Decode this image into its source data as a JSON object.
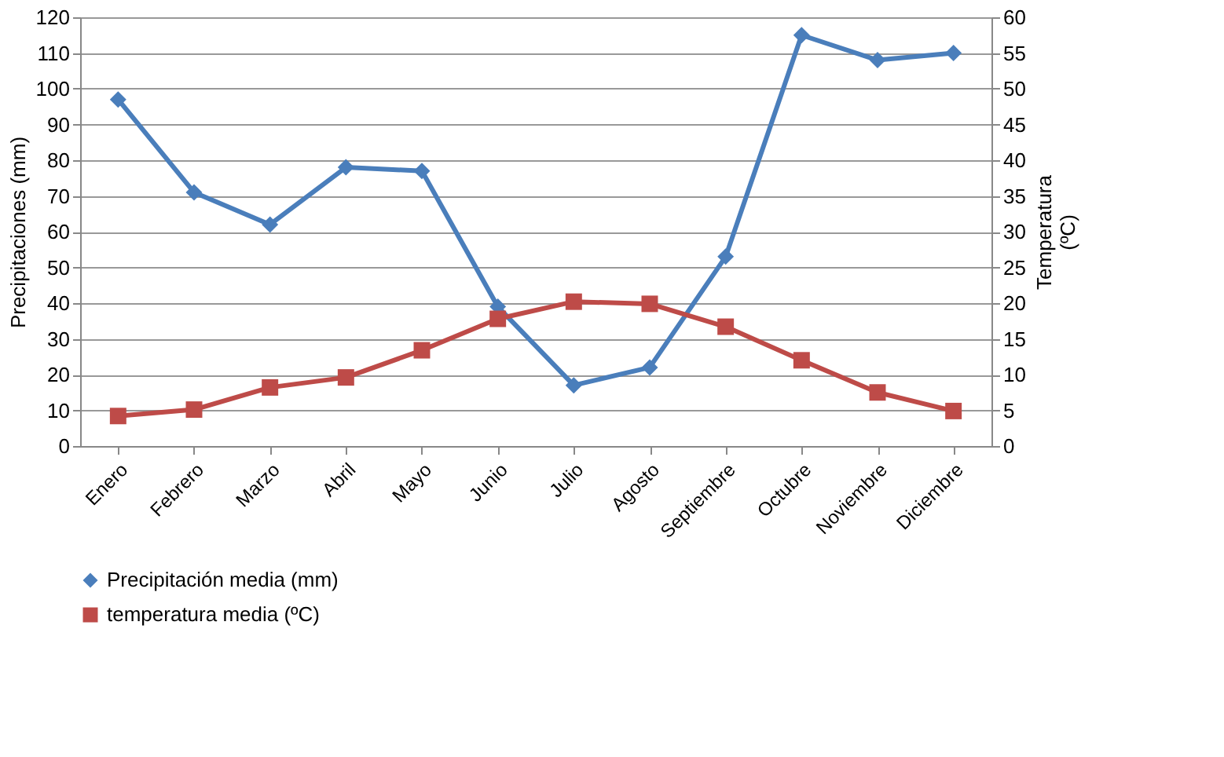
{
  "chart_data": {
    "type": "line",
    "categories": [
      "Enero",
      "Febrero",
      "Marzo",
      "Abril",
      "Mayo",
      "Junio",
      "Julio",
      "Agosto",
      "Septiembre",
      "Octubre",
      "Noviembre",
      "Diciembre"
    ],
    "series": [
      {
        "name": "Precipitación  media (mm)",
        "color": "#4a7ebb",
        "marker": "diamond",
        "values": [
          97,
          71,
          62,
          78,
          77,
          39,
          17,
          22,
          53,
          115,
          108,
          110
        ]
      },
      {
        "name": "temperatura media (ºC)",
        "color": "#be4b48",
        "marker": "square",
        "axis": "y2",
        "values": [
          4.2,
          5.1,
          8.2,
          9.6,
          13.4,
          17.8,
          20.2,
          19.9,
          16.7,
          12,
          7.5,
          4.9
        ]
      }
    ],
    "ylabel": "Precipitaciones (mm)",
    "y2label": "Temperatura (ºC)",
    "ylim": [
      0,
      120
    ],
    "yticks": [
      0,
      10,
      20,
      30,
      40,
      50,
      60,
      70,
      80,
      90,
      100,
      110,
      120
    ],
    "y2lim": [
      0,
      60
    ],
    "y2ticks": [
      0,
      5,
      10,
      15,
      20,
      25,
      30,
      35,
      40,
      45,
      50,
      55,
      60
    ],
    "grid": "y",
    "legend": "bottom",
    "line_style": "solid"
  }
}
